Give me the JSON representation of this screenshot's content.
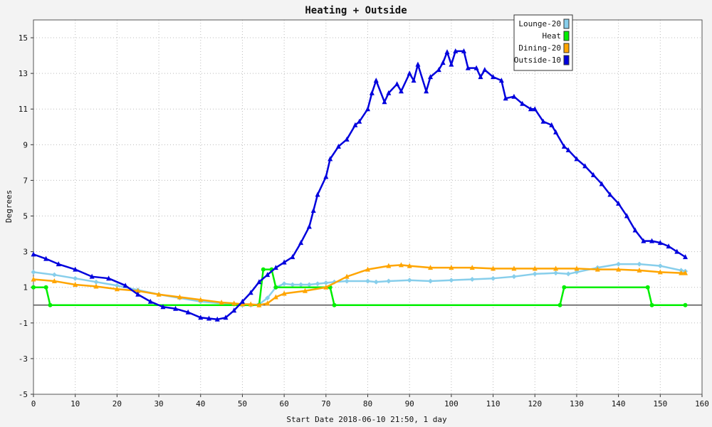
{
  "chart_data": {
    "type": "line",
    "title": "Heating + Outside",
    "xlabel": "Start Date 2018-06-10 21:50, 1 day",
    "ylabel": "Degrees",
    "xlim": [
      0,
      160
    ],
    "ylim": [
      -5,
      16
    ],
    "xticks": [
      0,
      10,
      20,
      30,
      40,
      50,
      60,
      70,
      80,
      90,
      100,
      110,
      120,
      130,
      140,
      150,
      160
    ],
    "yticks": [
      -5,
      -3,
      -1,
      1,
      3,
      5,
      7,
      9,
      11,
      13,
      15
    ],
    "grid": true,
    "legend_position": "top-right",
    "series": [
      {
        "name": "Lounge-20",
        "color": "#87ceeb",
        "marker": "diamond",
        "x": [
          0,
          5,
          10,
          15,
          20,
          25,
          30,
          35,
          40,
          45,
          48,
          50,
          52,
          54,
          56,
          58,
          60,
          62,
          64,
          66,
          68,
          70,
          72,
          75,
          80,
          82,
          85,
          90,
          95,
          100,
          105,
          110,
          115,
          120,
          125,
          128,
          130,
          135,
          140,
          145,
          150,
          155,
          156
        ],
        "y": [
          1.85,
          1.7,
          1.5,
          1.3,
          1.1,
          0.85,
          0.6,
          0.4,
          0.2,
          0.1,
          0.05,
          0.0,
          0.0,
          0.05,
          0.4,
          1.0,
          1.2,
          1.15,
          1.15,
          1.15,
          1.2,
          1.25,
          1.3,
          1.35,
          1.35,
          1.3,
          1.35,
          1.4,
          1.35,
          1.4,
          1.45,
          1.5,
          1.6,
          1.75,
          1.8,
          1.75,
          1.85,
          2.1,
          2.3,
          2.3,
          2.2,
          1.95,
          1.9
        ]
      },
      {
        "name": "Heat",
        "color": "#00ee00",
        "marker": "circle",
        "x": [
          0,
          3,
          4,
          54,
          55,
          57,
          58,
          71,
          72,
          126,
          127,
          147,
          148,
          156
        ],
        "y": [
          1,
          1,
          0,
          0,
          2,
          2,
          1,
          1,
          0,
          0,
          1,
          1,
          0,
          0
        ]
      },
      {
        "name": "Dining-20",
        "color": "#ffa500",
        "marker": "triangle",
        "x": [
          0,
          5,
          10,
          15,
          20,
          25,
          30,
          35,
          40,
          45,
          48,
          50,
          52,
          54,
          56,
          58,
          60,
          65,
          70,
          75,
          80,
          85,
          88,
          90,
          95,
          100,
          105,
          110,
          115,
          120,
          125,
          130,
          135,
          140,
          145,
          150,
          155,
          156
        ],
        "y": [
          1.45,
          1.35,
          1.15,
          1.05,
          0.9,
          0.8,
          0.6,
          0.45,
          0.3,
          0.15,
          0.1,
          0.05,
          0.05,
          0.0,
          0.1,
          0.45,
          0.65,
          0.8,
          1.0,
          1.6,
          2.0,
          2.2,
          2.25,
          2.2,
          2.1,
          2.1,
          2.1,
          2.05,
          2.05,
          2.05,
          2.05,
          2.05,
          2.0,
          2.0,
          1.95,
          1.85,
          1.8,
          1.8
        ]
      },
      {
        "name": "Outside-10",
        "color": "#0000dd",
        "marker": "triangle",
        "x": [
          0,
          3,
          6,
          10,
          14,
          18,
          22,
          25,
          28,
          31,
          34,
          37,
          40,
          42,
          44,
          46,
          48,
          50,
          52,
          54,
          56,
          58,
          60,
          62,
          64,
          66,
          67,
          68,
          70,
          71,
          73,
          75,
          77,
          78,
          80,
          81,
          82,
          84,
          85,
          87,
          88,
          90,
          91,
          92,
          94,
          95,
          97,
          98,
          99,
          100,
          101,
          103,
          104,
          106,
          107,
          108,
          110,
          112,
          113,
          115,
          117,
          119,
          120,
          122,
          124,
          125,
          127,
          128,
          130,
          132,
          134,
          136,
          138,
          140,
          142,
          144,
          146,
          148,
          150,
          152,
          154,
          156
        ],
        "y": [
          2.85,
          2.6,
          2.3,
          2.0,
          1.6,
          1.5,
          1.1,
          0.6,
          0.2,
          -0.1,
          -0.2,
          -0.4,
          -0.7,
          -0.75,
          -0.8,
          -0.7,
          -0.3,
          0.2,
          0.7,
          1.3,
          1.7,
          2.1,
          2.4,
          2.7,
          3.5,
          4.4,
          5.3,
          6.2,
          7.2,
          8.2,
          8.9,
          9.3,
          10.1,
          10.3,
          11.0,
          11.9,
          12.6,
          11.4,
          11.9,
          12.4,
          12.0,
          13.0,
          12.6,
          13.5,
          12.0,
          12.8,
          13.2,
          13.6,
          14.2,
          13.5,
          14.25,
          14.25,
          13.3,
          13.3,
          12.8,
          13.2,
          12.8,
          12.6,
          11.6,
          11.7,
          11.3,
          11.0,
          11.0,
          10.3,
          10.1,
          9.7,
          8.9,
          8.7,
          8.2,
          7.8,
          7.3,
          6.8,
          6.2,
          5.7,
          5.0,
          4.2,
          3.6,
          3.6,
          3.5,
          3.3,
          3.0,
          2.7
        ]
      }
    ]
  }
}
